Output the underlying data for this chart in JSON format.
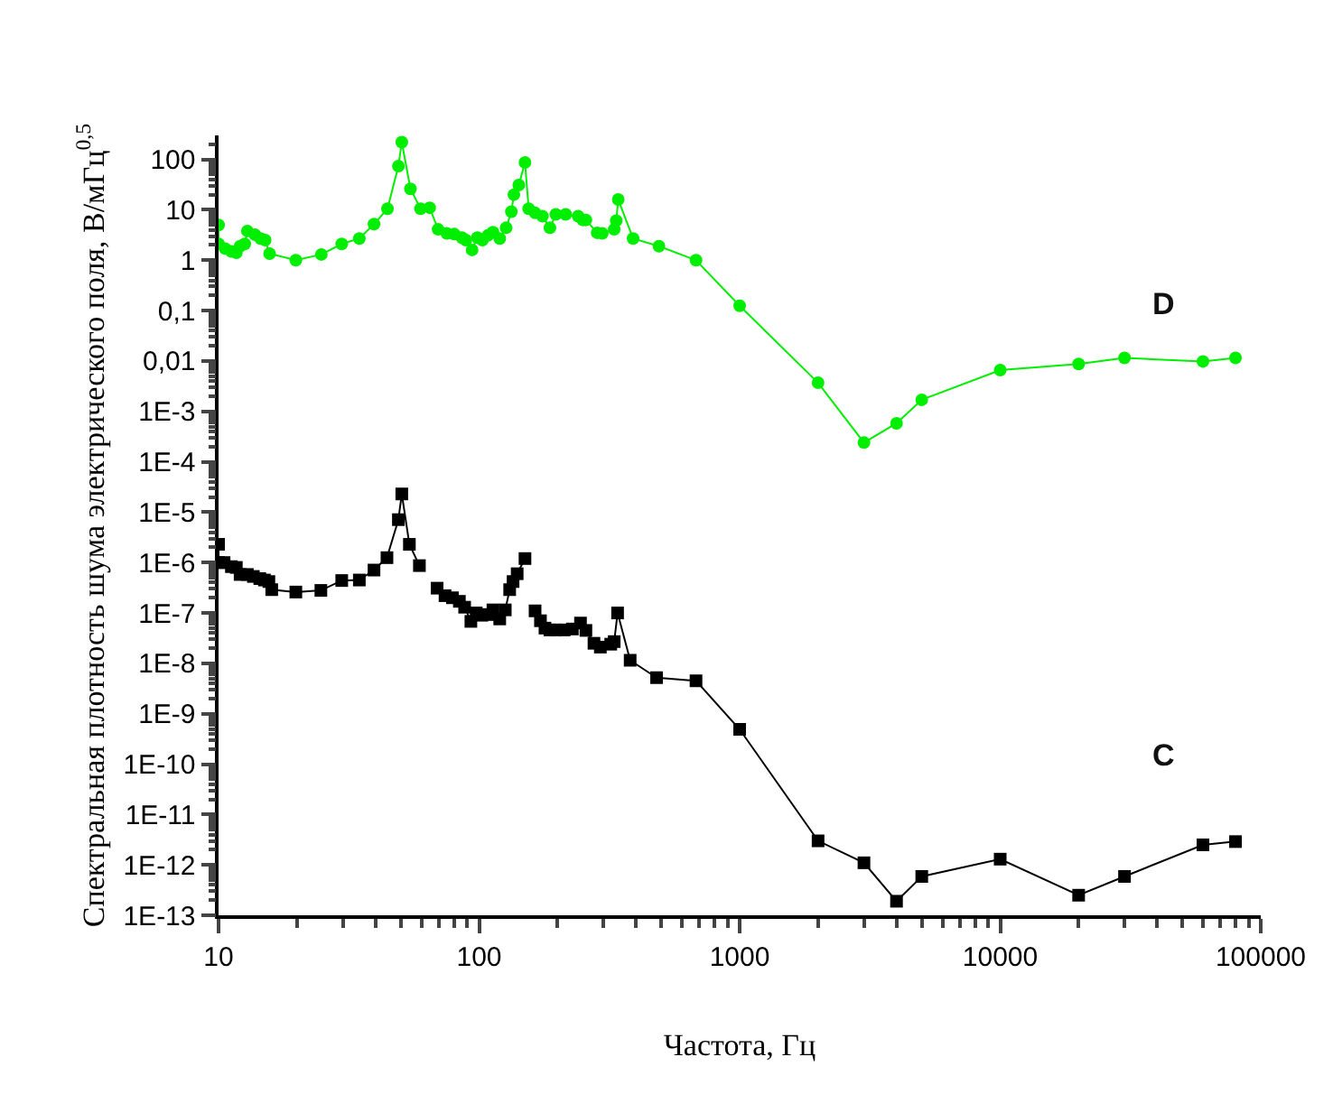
{
  "chart_data": {
    "type": "line",
    "xlabel": "Частота, Гц",
    "ylabel": "Спектральная плотность шума электрического поля, В/мГц$^{0,5}$",
    "log": "xy",
    "legend": false,
    "line_style": "solid",
    "xlim": [
      10,
      100000
    ],
    "xticks": [
      10,
      100,
      1000,
      10000,
      100000
    ],
    "ylim": [
      1e-13,
      300
    ],
    "yticks": [
      {
        "value": 100,
        "label": "100"
      },
      {
        "value": 10,
        "label": "10"
      },
      {
        "value": 1,
        "label": "1"
      },
      {
        "value": 0.1,
        "label": "0,1"
      },
      {
        "value": 0.01,
        "label": "0,01"
      },
      {
        "value": 0.001,
        "label": "1E-3"
      },
      {
        "value": 0.0001,
        "label": "1E-4"
      },
      {
        "value": 1e-05,
        "label": "1E-5"
      },
      {
        "value": 1e-06,
        "label": "1E-6"
      },
      {
        "value": 1e-07,
        "label": "1E-7"
      },
      {
        "value": 1e-08,
        "label": "1E-8"
      },
      {
        "value": 1e-09,
        "label": "1E-9"
      },
      {
        "value": 1e-10,
        "label": "1E-10"
      },
      {
        "value": 1e-11,
        "label": "1E-11"
      },
      {
        "value": 1e-12,
        "label": "1E-12"
      },
      {
        "value": 1e-13,
        "label": "1E-13"
      }
    ],
    "series": [
      {
        "name": "D",
        "color": "#00ee00",
        "marker": "circle",
        "x": [
          10,
          10,
          10.6,
          11.2,
          11.7,
          12.1,
          12.6,
          12.9,
          13.8,
          14.5,
          15.1,
          15.7,
          19.8,
          24.8,
          29.7,
          34.7,
          39.5,
          44.5,
          49,
          50.5,
          54.5,
          59.6,
          64.6,
          69.6,
          75.2,
          80.3,
          85.9,
          89,
          94,
          98.5,
          103,
          108,
          113,
          120,
          127,
          133,
          136,
          142,
          150,
          155,
          164,
          175,
          187,
          197,
          215,
          240,
          250,
          257,
          284,
          297,
          330,
          336,
          342,
          390,
          490,
          680,
          1000,
          2000,
          3000,
          4000,
          5000,
          10000,
          20000,
          30000,
          60000,
          80000
        ],
        "values": [
          5,
          2.1,
          1.7,
          1.5,
          1.4,
          1.9,
          2.1,
          3.8,
          3.2,
          2.7,
          2.5,
          1.35,
          1.0,
          1.3,
          2.1,
          2.7,
          5.2,
          10.5,
          74,
          220,
          26,
          10.5,
          11,
          4.1,
          3.4,
          3.3,
          2.8,
          2.5,
          1.6,
          2.8,
          2.5,
          3.1,
          3.6,
          2.7,
          4.4,
          9.2,
          20,
          31,
          87,
          10.5,
          8.7,
          7.5,
          4.4,
          8.1,
          8.1,
          7.5,
          6.3,
          6.3,
          3.5,
          3.4,
          4.1,
          6.1,
          16,
          2.7,
          1.9,
          1.0,
          0.125,
          0.0037,
          0.00024,
          0.00058,
          0.0017,
          0.0066,
          0.0087,
          0.0115,
          0.0098,
          0.0115
        ]
      },
      {
        "name": "C",
        "color": "#000000",
        "marker": "square",
        "x": [
          10,
          10,
          10.5,
          11.2,
          11.7,
          12.1,
          12.9,
          13.6,
          14.4,
          15,
          15.6,
          16,
          19.8,
          24.7,
          29.7,
          34.7,
          39.5,
          44.3,
          49,
          50.5,
          54,
          59,
          64,
          69,
          74,
          79,
          84,
          88,
          93,
          97.5,
          102.5,
          108,
          113,
          120,
          126,
          131,
          135,
          140,
          150,
          157,
          164,
          172,
          179,
          187,
          197,
          212,
          228,
          245,
          257,
          276,
          292,
          320,
          330,
          340,
          380,
          480,
          680,
          1000,
          2000,
          3000,
          4000,
          5000,
          10000,
          20000,
          30000,
          60000,
          80000
        ],
        "values": [
          2.3e-06,
          1e-06,
          1e-06,
          8.3e-07,
          8e-07,
          5.8e-07,
          5.8e-07,
          5.3e-07,
          4.8e-07,
          4.5e-07,
          4.2e-07,
          2.9e-07,
          2.6e-07,
          2.8e-07,
          4.4e-07,
          4.5e-07,
          7.1e-07,
          1.25e-06,
          7.1e-06,
          2.3e-05,
          2.3e-06,
          8.7e-07,
          null,
          3.1e-07,
          2.2e-07,
          2e-07,
          1.7e-07,
          1.3e-07,
          6.8e-08,
          1e-07,
          9e-08,
          9.3e-08,
          1.15e-07,
          7.6e-08,
          1.15e-07,
          2.9e-07,
          4.2e-07,
          6e-07,
          1.2e-06,
          null,
          1.1e-07,
          7e-08,
          5e-08,
          4.6e-08,
          4.6e-08,
          4.6e-08,
          4.8e-08,
          6.3e-08,
          4.5e-08,
          2.5e-08,
          2.1e-08,
          2.4e-08,
          2.7e-08,
          1e-07,
          1.15e-08,
          5.2e-09,
          4.5e-09,
          4.9e-10,
          3e-12,
          1.1e-12,
          1.9e-13,
          5.9e-13,
          1.3e-12,
          2.5e-13,
          5.9e-13,
          2.5e-12,
          2.9e-12
        ]
      }
    ]
  }
}
